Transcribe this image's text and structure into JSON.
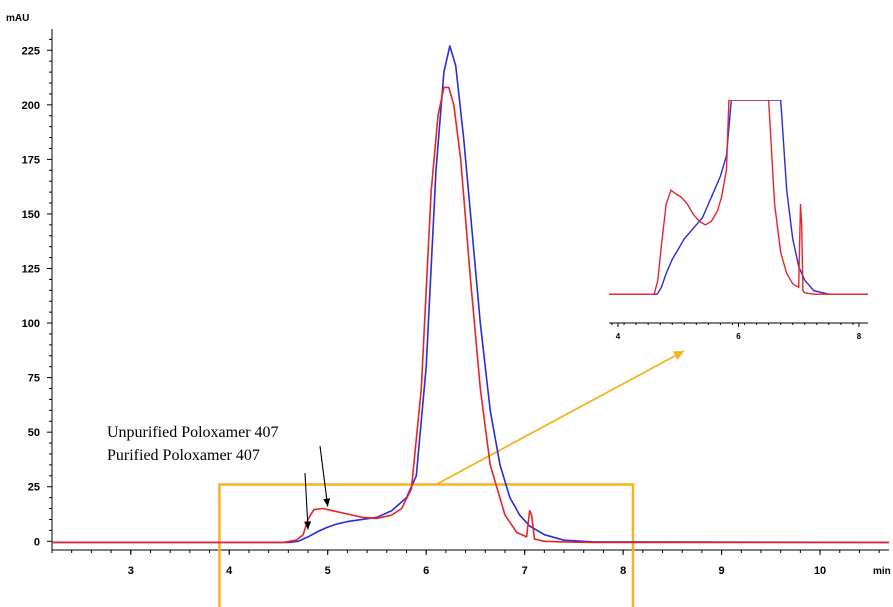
{
  "chart_data": {
    "type": "line",
    "title": "",
    "xlabel": "min",
    "ylabel": "mAU",
    "xlim": [
      2.2,
      10.7
    ],
    "ylim": [
      -4,
      232
    ],
    "x_ticks": [
      3,
      4,
      5,
      6,
      7,
      8,
      9,
      10
    ],
    "y_ticks": [
      0,
      25,
      50,
      75,
      100,
      125,
      150,
      175,
      200,
      225
    ],
    "grid": false,
    "series": [
      {
        "color": "#e8242b",
        "x": [
          2.2,
          4.55,
          4.68,
          4.75,
          4.8,
          4.86,
          4.95,
          5.05,
          5.2,
          5.35,
          5.5,
          5.65,
          5.75,
          5.85,
          5.95,
          6.05,
          6.12,
          6.18,
          6.23,
          6.28,
          6.35,
          6.45,
          6.55,
          6.65,
          6.8,
          6.92,
          7.02,
          7.05,
          7.07,
          7.1,
          7.2,
          7.4,
          7.7,
          10.7
        ],
        "y": [
          -0.5,
          -0.5,
          0.5,
          3,
          10,
          14.5,
          15,
          14,
          12.5,
          11,
          10.5,
          12,
          15,
          24,
          70,
          160,
          195,
          208,
          208,
          200,
          175,
          120,
          70,
          35,
          12,
          4,
          2,
          14,
          12,
          1,
          0,
          -0.3,
          -0.5,
          -0.5
        ]
      },
      {
        "color": "#2b2bd8",
        "x": [
          2.2,
          4.6,
          4.7,
          4.8,
          4.9,
          5.0,
          5.1,
          5.2,
          5.35,
          5.5,
          5.65,
          5.8,
          5.9,
          6.0,
          6.1,
          6.18,
          6.24,
          6.3,
          6.38,
          6.45,
          6.55,
          6.65,
          6.75,
          6.85,
          6.95,
          7.05,
          7.2,
          7.4,
          7.7,
          10.7
        ],
        "y": [
          -0.5,
          -0.5,
          0,
          2,
          4.5,
          6.5,
          8,
          9,
          10,
          11,
          14,
          20,
          30,
          80,
          170,
          215,
          227,
          218,
          185,
          150,
          100,
          60,
          35,
          20,
          12,
          7,
          3,
          0.5,
          -0.3,
          -0.5
        ]
      }
    ],
    "annotations": [
      {
        "text": "Unpurified Poloxamer 407",
        "target_series": 0,
        "x": 5.0,
        "y": 14.5
      },
      {
        "text": "Purified Poloxamer 407",
        "target_series": 1,
        "x": 4.8,
        "y": 4
      }
    ],
    "zoom_box": {
      "x_range": [
        3.9,
        8.1
      ],
      "y_range": [
        -4,
        26
      ],
      "color": "#f4b323"
    },
    "inset": {
      "x_ticks": [
        4,
        6,
        8
      ],
      "xlim": [
        3.85,
        8.15
      ],
      "ylim": [
        -3,
        28
      ],
      "series": [
        {
          "color": "#e8242b",
          "x": [
            3.85,
            4.6,
            4.66,
            4.72,
            4.8,
            4.88,
            4.95,
            5.05,
            5.15,
            5.25,
            5.35,
            5.45,
            5.55,
            5.65,
            5.72,
            5.8,
            5.84,
            6.5,
            6.6,
            6.7,
            6.8,
            6.9,
            7.0,
            7.03,
            7.05,
            7.07,
            7.1,
            7.25,
            7.5,
            8.15
          ],
          "y": [
            0,
            0,
            2,
            7,
            13,
            15,
            14.5,
            14,
            13,
            11.5,
            10.5,
            10,
            10.5,
            12,
            14,
            18,
            28,
            28,
            13,
            6,
            3,
            1.5,
            1,
            13,
            10,
            0.5,
            0.2,
            0,
            0,
            0
          ]
        },
        {
          "color": "#2b2bd8",
          "x": [
            3.85,
            4.65,
            4.72,
            4.8,
            4.9,
            5.0,
            5.1,
            5.2,
            5.3,
            5.4,
            5.5,
            5.6,
            5.7,
            5.8,
            5.88,
            6.7,
            6.8,
            6.9,
            7.0,
            7.1,
            7.25,
            7.5,
            8.15
          ],
          "y": [
            0,
            0,
            1,
            3,
            5,
            6.5,
            8,
            9,
            10,
            11,
            13,
            15,
            17,
            20,
            28,
            28,
            15,
            8,
            4,
            2,
            0.5,
            0,
            0
          ]
        }
      ]
    }
  }
}
